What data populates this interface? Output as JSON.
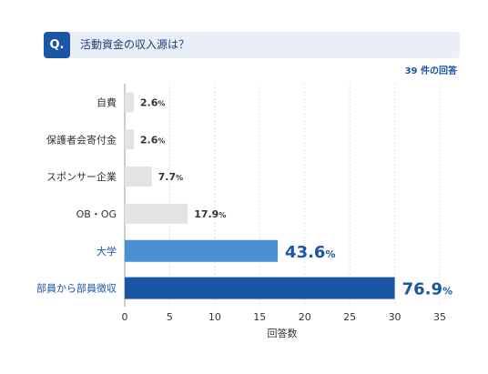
{
  "question": {
    "badge": "Q.",
    "text": "活動資金の収入源は？"
  },
  "response_count": "39 件の回答",
  "colors": {
    "accent": "#1a56a5",
    "highlight": "#4a90d3",
    "default_bar": "#e3e3e3"
  },
  "chart_data": {
    "type": "bar",
    "orientation": "horizontal",
    "categories": [
      "自費",
      "保護者会寄付金",
      "スポンサー企業",
      "OB・OG",
      "大学",
      "部員から部員徴収"
    ],
    "values": [
      1,
      1,
      3,
      7,
      17,
      30
    ],
    "percent_labels": [
      "2.6",
      "2.6",
      "7.7",
      "17.9",
      "43.6",
      "76.9"
    ],
    "percent_unit": "%",
    "xlabel": "回答数",
    "xlim": [
      0,
      35
    ],
    "xticks": [
      0,
      5,
      10,
      15,
      20,
      25,
      30,
      35
    ],
    "grid": true
  }
}
